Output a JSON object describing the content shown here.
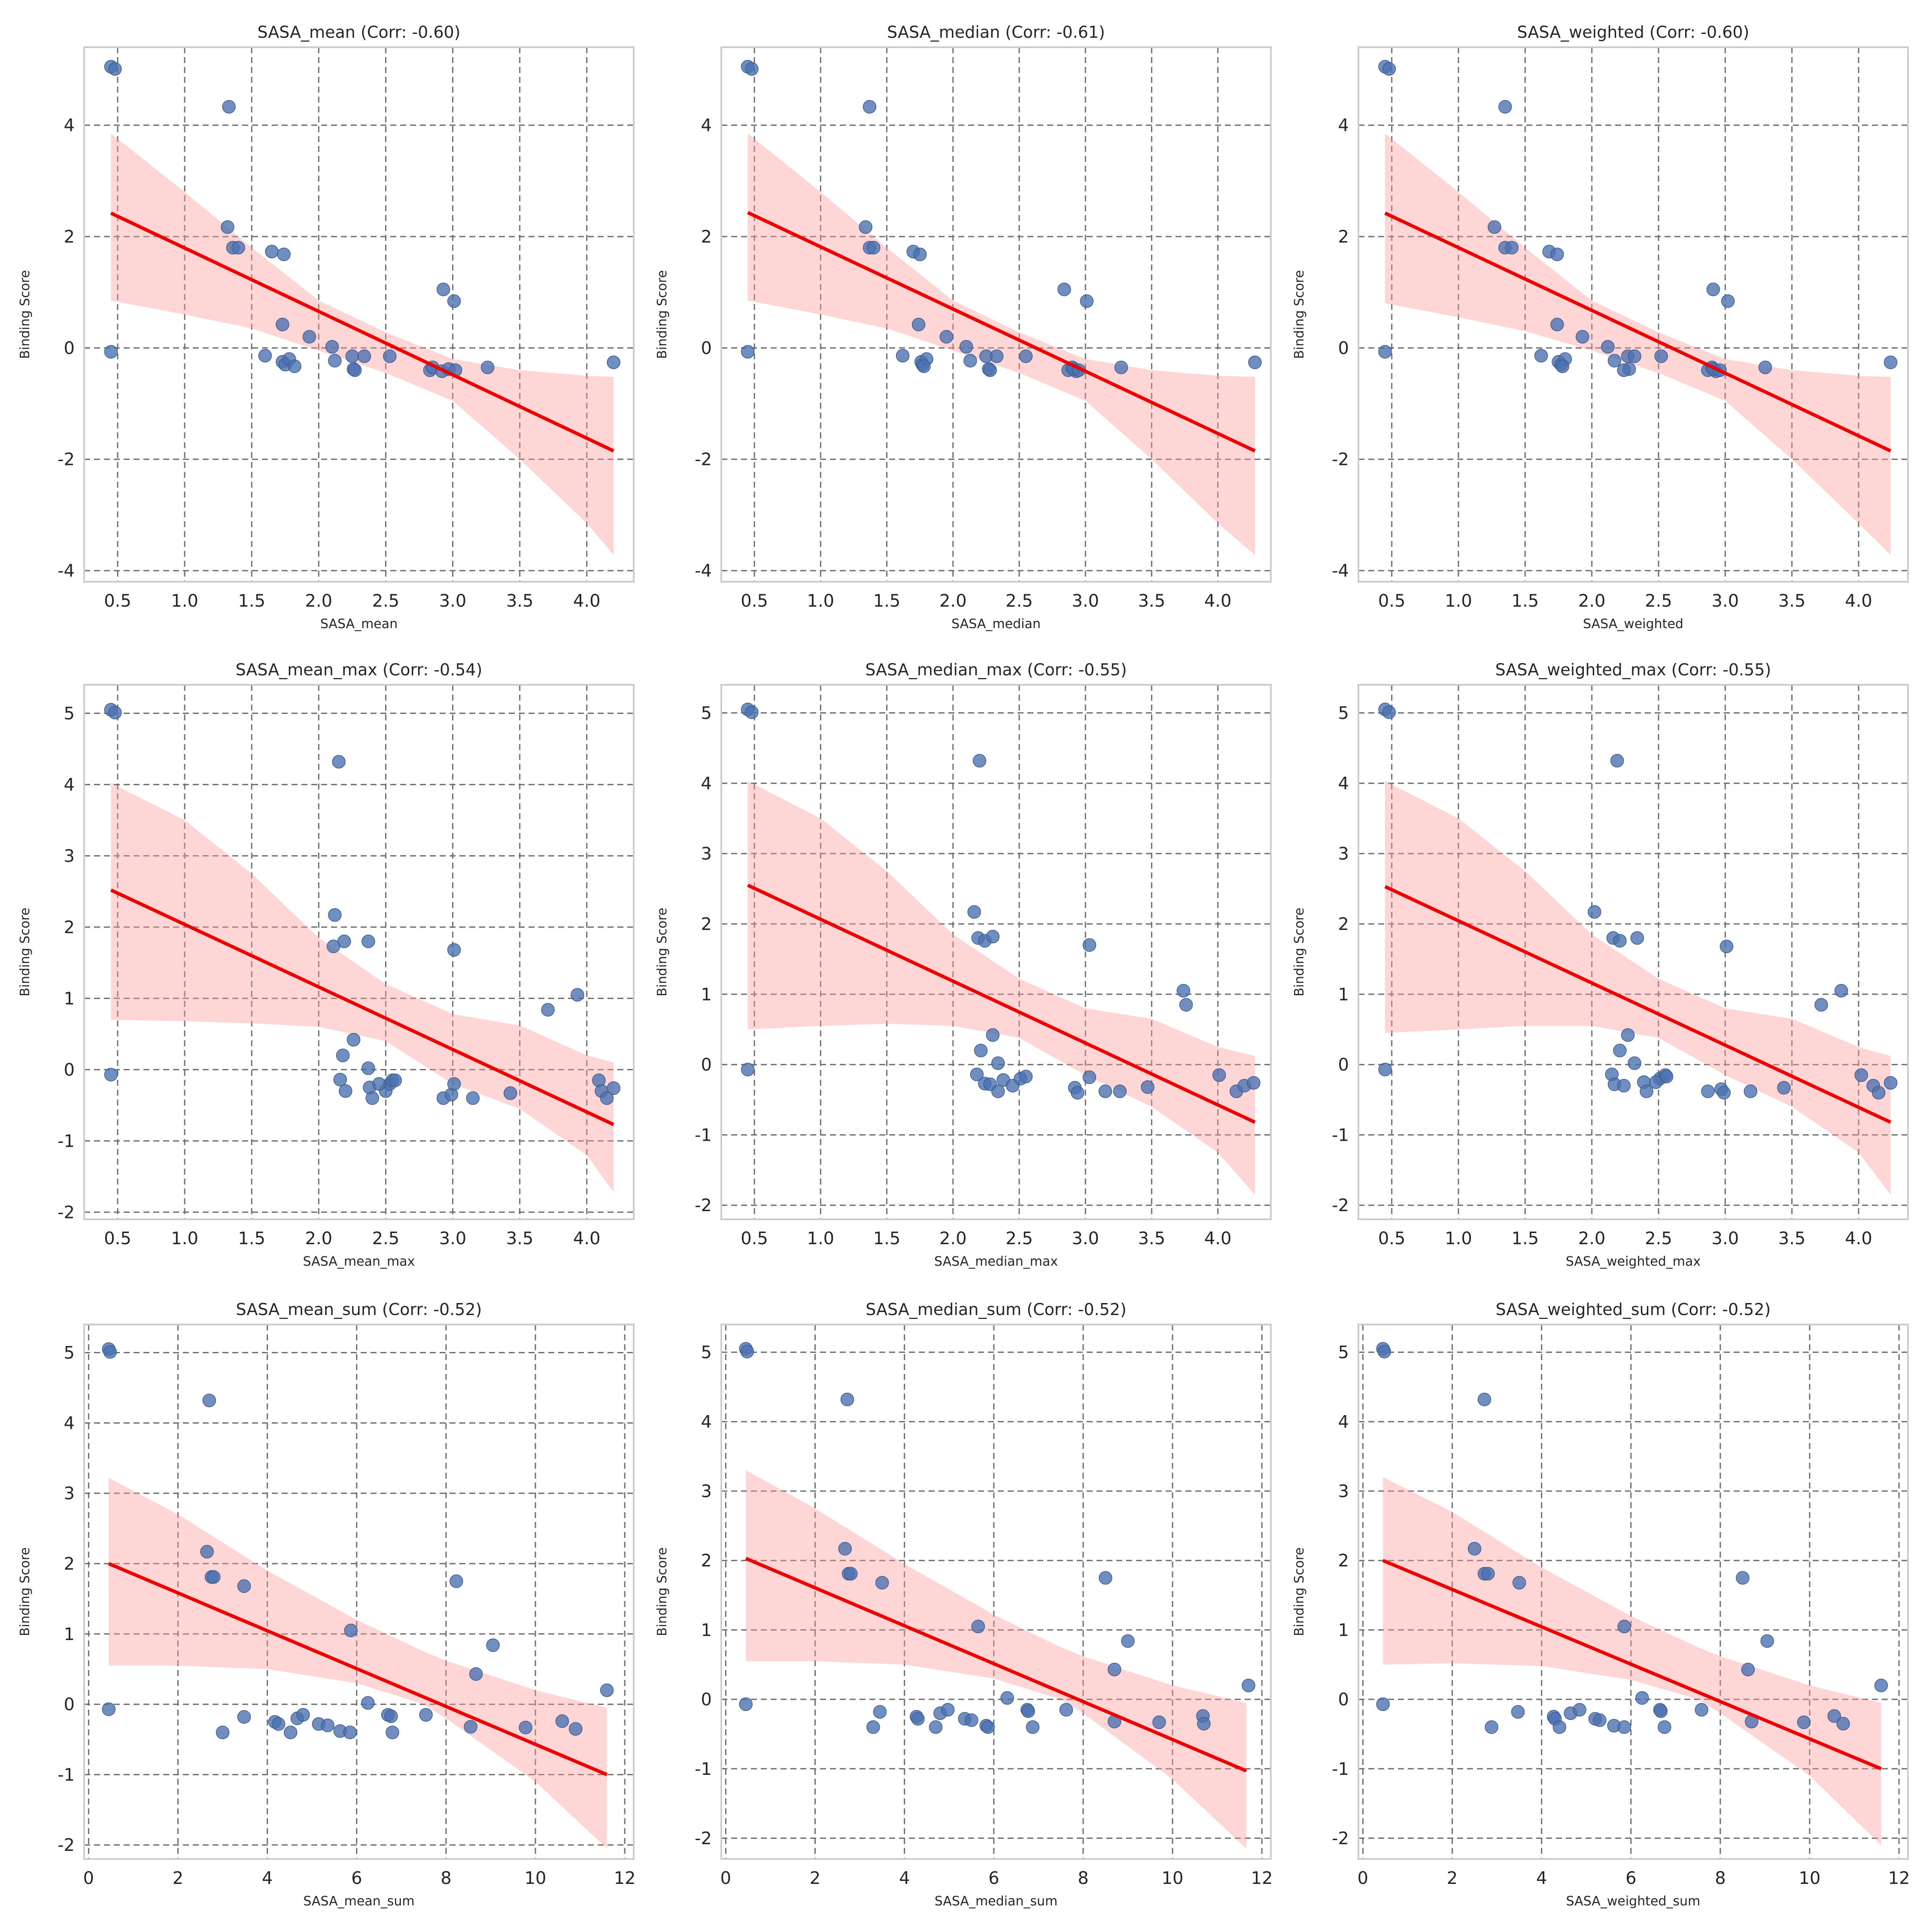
{
  "chart_data": [
    {
      "type": "scatter",
      "title": "SASA_mean (Corr: -0.60)",
      "xlabel": "SASA_mean",
      "ylabel": "Binding Score",
      "xlim": [
        0.25,
        4.35
      ],
      "ylim": [
        -4.2,
        5.4
      ],
      "xticks": [
        0.5,
        1.0,
        1.5,
        2.0,
        2.5,
        3.0,
        3.5,
        4.0
      ],
      "yticks": [
        -4,
        -2,
        0,
        2,
        4
      ],
      "x": [
        0.45,
        0.48,
        0.45,
        1.33,
        1.32,
        1.36,
        1.4,
        1.65,
        1.74,
        1.73,
        1.6,
        1.73,
        1.75,
        1.78,
        1.82,
        1.93,
        2.1,
        2.12,
        2.25,
        2.26,
        2.27,
        2.34,
        2.53,
        2.83,
        2.85,
        2.92,
        2.97,
        3.02,
        2.93,
        3.01,
        3.26,
        4.2
      ],
      "y": [
        5.05,
        5.01,
        -0.07,
        4.33,
        2.17,
        1.8,
        1.8,
        1.73,
        1.68,
        0.42,
        -0.14,
        -0.25,
        -0.3,
        -0.2,
        -0.33,
        0.2,
        0.02,
        -0.23,
        -0.15,
        -0.38,
        -0.4,
        -0.15,
        -0.15,
        -0.4,
        -0.35,
        -0.42,
        -0.38,
        -0.4,
        1.05,
        0.84,
        -0.35,
        -0.26
      ],
      "fit": {
        "x": [
          0.45,
          4.2
        ],
        "y": [
          2.42,
          -1.85
        ]
      },
      "band": {
        "x": [
          0.45,
          1.0,
          1.5,
          2.0,
          2.5,
          3.0,
          3.5,
          4.0,
          4.2
        ],
        "lower": [
          0.85,
          0.6,
          0.35,
          -0.05,
          -0.45,
          -0.95,
          -2.0,
          -3.15,
          -3.72
        ],
        "upper": [
          3.85,
          2.8,
          1.8,
          0.85,
          0.28,
          -0.2,
          -0.4,
          -0.5,
          -0.52
        ]
      }
    },
    {
      "type": "scatter",
      "title": "SASA_median (Corr: -0.61)",
      "xlabel": "SASA_median",
      "ylabel": "Binding Score",
      "xlim": [
        0.25,
        4.4
      ],
      "ylim": [
        -4.2,
        5.4
      ],
      "xticks": [
        0.5,
        1.0,
        1.5,
        2.0,
        2.5,
        3.0,
        3.5,
        4.0
      ],
      "yticks": [
        -4,
        -2,
        0,
        2,
        4
      ],
      "x": [
        0.45,
        0.48,
        0.45,
        1.37,
        1.34,
        1.37,
        1.4,
        1.7,
        1.75,
        1.74,
        1.62,
        1.76,
        1.77,
        1.8,
        1.78,
        1.95,
        2.1,
        2.13,
        2.25,
        2.27,
        2.28,
        2.33,
        2.55,
        2.87,
        2.9,
        2.93,
        2.91,
        2.95,
        2.84,
        3.01,
        3.27,
        4.28
      ],
      "y": [
        5.05,
        5.01,
        -0.07,
        4.33,
        2.17,
        1.8,
        1.8,
        1.73,
        1.68,
        0.42,
        -0.14,
        -0.25,
        -0.3,
        -0.2,
        -0.33,
        0.2,
        0.02,
        -0.23,
        -0.15,
        -0.38,
        -0.4,
        -0.15,
        -0.15,
        -0.4,
        -0.35,
        -0.42,
        -0.38,
        -0.4,
        1.05,
        0.84,
        -0.35,
        -0.26
      ],
      "fit": {
        "x": [
          0.45,
          4.28
        ],
        "y": [
          2.43,
          -1.85
        ]
      },
      "band": {
        "x": [
          0.45,
          1.0,
          1.5,
          2.0,
          2.5,
          3.0,
          3.5,
          4.0,
          4.28
        ],
        "lower": [
          0.85,
          0.6,
          0.35,
          -0.05,
          -0.45,
          -0.95,
          -2.0,
          -3.15,
          -3.72
        ],
        "upper": [
          3.85,
          2.8,
          1.8,
          0.85,
          0.28,
          -0.2,
          -0.4,
          -0.5,
          -0.52
        ]
      }
    },
    {
      "type": "scatter",
      "title": "SASA_weighted (Corr: -0.60)",
      "xlabel": "SASA_weighted",
      "ylabel": "Binding Score",
      "xlim": [
        0.25,
        4.37
      ],
      "ylim": [
        -4.2,
        5.4
      ],
      "xticks": [
        0.5,
        1.0,
        1.5,
        2.0,
        2.5,
        3.0,
        3.5,
        4.0
      ],
      "yticks": [
        -4,
        -2,
        0,
        2,
        4
      ],
      "x": [
        0.45,
        0.48,
        0.45,
        1.35,
        1.27,
        1.35,
        1.4,
        1.68,
        1.74,
        1.74,
        1.62,
        1.75,
        1.77,
        1.8,
        1.78,
        1.93,
        2.12,
        2.17,
        2.27,
        2.28,
        2.24,
        2.32,
        2.52,
        2.87,
        2.9,
        2.93,
        2.91,
        2.96,
        2.91,
        3.02,
        3.3,
        4.24
      ],
      "y": [
        5.05,
        5.01,
        -0.07,
        4.33,
        2.17,
        1.8,
        1.8,
        1.73,
        1.68,
        0.42,
        -0.14,
        -0.25,
        -0.3,
        -0.2,
        -0.33,
        0.2,
        0.02,
        -0.23,
        -0.15,
        -0.38,
        -0.4,
        -0.15,
        -0.15,
        -0.4,
        -0.35,
        -0.42,
        -0.38,
        -0.4,
        1.05,
        0.84,
        -0.35,
        -0.26
      ],
      "fit": {
        "x": [
          0.45,
          4.24
        ],
        "y": [
          2.42,
          -1.85
        ]
      },
      "band": {
        "x": [
          0.45,
          1.0,
          1.5,
          2.0,
          2.5,
          3.0,
          3.5,
          4.0,
          4.24
        ],
        "lower": [
          0.8,
          0.55,
          0.3,
          -0.05,
          -0.45,
          -0.95,
          -2.0,
          -3.15,
          -3.72
        ],
        "upper": [
          3.85,
          2.8,
          1.8,
          0.85,
          0.28,
          -0.2,
          -0.4,
          -0.5,
          -0.52
        ]
      }
    },
    {
      "type": "scatter",
      "title": "SASA_mean_max (Corr: -0.54)",
      "xlabel": "SASA_mean_max",
      "ylabel": "Binding Score",
      "xlim": [
        0.25,
        4.35
      ],
      "ylim": [
        -2.1,
        5.4
      ],
      "xticks": [
        0.5,
        1.0,
        1.5,
        2.0,
        2.5,
        3.0,
        3.5,
        4.0
      ],
      "yticks": [
        -2,
        -1,
        0,
        1,
        2,
        3,
        4,
        5
      ],
      "x": [
        0.45,
        0.48,
        0.45,
        2.15,
        2.12,
        2.19,
        2.37,
        2.11,
        3.01,
        2.26,
        2.18,
        2.37,
        2.16,
        2.2,
        2.38,
        2.4,
        2.5,
        2.53,
        2.55,
        2.93,
        2.99,
        3.01,
        3.15,
        3.43,
        3.71,
        3.93,
        4.09,
        4.11,
        4.15,
        4.2,
        2.45,
        2.57
      ],
      "y": [
        5.05,
        5.01,
        -0.07,
        4.32,
        2.17,
        1.8,
        1.8,
        1.73,
        1.68,
        0.42,
        0.2,
        0.02,
        -0.14,
        -0.3,
        -0.25,
        -0.4,
        -0.3,
        -0.2,
        -0.15,
        -0.4,
        -0.35,
        -0.2,
        -0.4,
        -0.33,
        0.84,
        1.05,
        -0.15,
        -0.3,
        -0.4,
        -0.26,
        -0.2,
        -0.15
      ],
      "fit": {
        "x": [
          0.45,
          4.2
        ],
        "y": [
          2.52,
          -0.77
        ]
      },
      "band": {
        "x": [
          0.45,
          1.0,
          1.5,
          2.0,
          2.5,
          3.0,
          3.5,
          4.0,
          4.2
        ],
        "lower": [
          0.7,
          0.68,
          0.65,
          0.6,
          0.4,
          -0.2,
          -0.55,
          -1.2,
          -1.72
        ],
        "upper": [
          4.02,
          3.5,
          2.75,
          1.85,
          1.2,
          0.78,
          0.62,
          0.2,
          0.1
        ]
      }
    },
    {
      "type": "scatter",
      "title": "SASA_median_max (Corr: -0.55)",
      "xlabel": "SASA_median_max",
      "ylabel": "Binding Score",
      "xlim": [
        0.25,
        4.4
      ],
      "ylim": [
        -2.2,
        5.4
      ],
      "xticks": [
        0.5,
        1.0,
        1.5,
        2.0,
        2.5,
        3.0,
        3.5,
        4.0
      ],
      "yticks": [
        -2,
        -1,
        0,
        1,
        2,
        3,
        4,
        5
      ],
      "x": [
        0.45,
        0.48,
        0.45,
        2.2,
        2.16,
        2.19,
        2.24,
        2.3,
        3.03,
        2.3,
        2.21,
        2.34,
        2.18,
        2.24,
        2.28,
        2.34,
        2.38,
        2.45,
        2.51,
        2.92,
        2.94,
        3.03,
        3.15,
        3.26,
        3.47,
        3.74,
        3.76,
        4.01,
        4.14,
        4.2,
        4.27,
        2.55
      ],
      "y": [
        5.05,
        5.01,
        -0.07,
        4.32,
        2.17,
        1.8,
        1.76,
        1.82,
        1.7,
        0.42,
        0.2,
        0.02,
        -0.14,
        -0.27,
        -0.28,
        -0.38,
        -0.22,
        -0.3,
        -0.2,
        -0.33,
        -0.4,
        -0.18,
        -0.38,
        -0.38,
        -0.32,
        1.05,
        0.85,
        -0.15,
        -0.38,
        -0.3,
        -0.26,
        -0.17
      ],
      "fit": {
        "x": [
          0.45,
          4.28
        ],
        "y": [
          2.55,
          -0.82
        ]
      },
      "band": {
        "x": [
          0.45,
          1.0,
          1.5,
          2.0,
          2.5,
          3.0,
          3.5,
          4.0,
          4.28
        ],
        "lower": [
          0.5,
          0.55,
          0.58,
          0.55,
          0.38,
          -0.15,
          -0.6,
          -1.25,
          -1.85
        ],
        "upper": [
          4.03,
          3.5,
          2.75,
          1.85,
          1.22,
          0.8,
          0.65,
          0.25,
          0.12
        ]
      }
    },
    {
      "type": "scatter",
      "title": "SASA_weighted_max (Corr: -0.55)",
      "xlabel": "SASA_weighted_max",
      "ylabel": "Binding Score",
      "xlim": [
        0.25,
        4.37
      ],
      "ylim": [
        -2.2,
        5.4
      ],
      "xticks": [
        0.5,
        1.0,
        1.5,
        2.0,
        2.5,
        3.0,
        3.5,
        4.0
      ],
      "yticks": [
        -2,
        -1,
        0,
        1,
        2,
        3,
        4,
        5
      ],
      "x": [
        0.45,
        0.48,
        0.45,
        2.19,
        2.02,
        2.16,
        2.34,
        2.21,
        3.01,
        2.27,
        2.21,
        2.32,
        2.15,
        2.17,
        2.24,
        2.39,
        2.51,
        2.41,
        2.55,
        2.87,
        2.97,
        2.99,
        3.19,
        3.44,
        3.72,
        3.87,
        4.02,
        4.11,
        4.15,
        4.24,
        2.48,
        2.56
      ],
      "y": [
        5.05,
        5.01,
        -0.07,
        4.32,
        2.17,
        1.8,
        1.8,
        1.76,
        1.68,
        0.42,
        0.2,
        0.02,
        -0.14,
        -0.28,
        -0.3,
        -0.25,
        -0.2,
        -0.38,
        -0.15,
        -0.38,
        -0.35,
        -0.4,
        -0.38,
        -0.33,
        0.85,
        1.05,
        -0.15,
        -0.3,
        -0.4,
        -0.26,
        -0.25,
        -0.17
      ],
      "fit": {
        "x": [
          0.45,
          4.24
        ],
        "y": [
          2.53,
          -0.82
        ]
      },
      "band": {
        "x": [
          0.45,
          1.0,
          1.5,
          2.0,
          2.5,
          3.0,
          3.5,
          4.0,
          4.24
        ],
        "lower": [
          0.45,
          0.5,
          0.55,
          0.55,
          0.38,
          -0.15,
          -0.6,
          -1.25,
          -1.85
        ],
        "upper": [
          4.03,
          3.5,
          2.75,
          1.85,
          1.22,
          0.8,
          0.65,
          0.25,
          0.12
        ]
      }
    },
    {
      "type": "scatter",
      "title": "SASA_mean_sum (Corr: -0.52)",
      "xlabel": "SASA_mean_sum",
      "ylabel": "Binding Score",
      "xlim": [
        -0.1,
        12.2
      ],
      "ylim": [
        -2.2,
        5.4
      ],
      "xticks": [
        0,
        2,
        4,
        6,
        8,
        10,
        12
      ],
      "yticks": [
        -2,
        -1,
        0,
        1,
        2,
        3,
        4,
        5
      ],
      "x": [
        0.45,
        0.48,
        0.45,
        2.7,
        2.65,
        2.75,
        2.8,
        3.48,
        3.0,
        3.48,
        4.17,
        4.25,
        4.52,
        4.67,
        4.8,
        5.15,
        5.35,
        5.63,
        5.85,
        5.87,
        6.25,
        6.7,
        6.77,
        6.8,
        7.55,
        8.23,
        8.55,
        8.67,
        9.05,
        9.78,
        10.6,
        10.9,
        11.6
      ],
      "y": [
        5.05,
        5.01,
        -0.07,
        4.32,
        2.17,
        1.81,
        1.81,
        1.68,
        -0.4,
        -0.18,
        -0.25,
        -0.28,
        -0.4,
        -0.2,
        -0.15,
        -0.28,
        -0.3,
        -0.38,
        -0.4,
        1.05,
        0.02,
        -0.15,
        -0.17,
        -0.4,
        -0.15,
        1.75,
        -0.32,
        0.43,
        0.84,
        -0.33,
        -0.24,
        -0.35,
        0.2
      ],
      "fit": {
        "x": [
          0.45,
          11.6
        ],
        "y": [
          2.0,
          -1.0
        ]
      },
      "band": {
        "x": [
          0.45,
          2,
          4,
          6,
          7.5,
          8,
          10,
          11.6
        ],
        "lower": [
          0.55,
          0.55,
          0.5,
          0.3,
          0.0,
          -0.2,
          -1.1,
          -2.05
        ],
        "upper": [
          3.22,
          2.7,
          1.9,
          1.2,
          0.75,
          0.62,
          0.2,
          -0.05
        ]
      }
    },
    {
      "type": "scatter",
      "title": "SASA_median_sum (Corr: -0.52)",
      "xlabel": "SASA_median_sum",
      "ylabel": "Binding Score",
      "xlim": [
        -0.1,
        12.2
      ],
      "ylim": [
        -2.3,
        5.4
      ],
      "xticks": [
        0,
        2,
        4,
        6,
        8,
        10,
        12
      ],
      "yticks": [
        -2,
        -1,
        0,
        1,
        2,
        3,
        4,
        5
      ],
      "x": [
        0.45,
        0.48,
        0.45,
        2.72,
        2.67,
        2.75,
        2.8,
        3.5,
        3.3,
        3.45,
        4.27,
        4.3,
        4.7,
        4.8,
        4.97,
        5.35,
        5.5,
        5.83,
        5.87,
        5.65,
        6.3,
        6.75,
        6.77,
        6.87,
        7.62,
        8.5,
        8.7,
        8.7,
        9.0,
        9.7,
        10.68,
        10.7,
        11.7
      ],
      "y": [
        5.05,
        5.01,
        -0.07,
        4.32,
        2.17,
        1.81,
        1.81,
        1.68,
        -0.4,
        -0.18,
        -0.25,
        -0.28,
        -0.4,
        -0.2,
        -0.15,
        -0.28,
        -0.3,
        -0.38,
        -0.4,
        1.05,
        0.02,
        -0.15,
        -0.17,
        -0.4,
        -0.15,
        1.75,
        -0.32,
        0.43,
        0.84,
        -0.33,
        -0.24,
        -0.35,
        0.2
      ],
      "fit": {
        "x": [
          0.45,
          11.65
        ],
        "y": [
          2.03,
          -1.03
        ]
      },
      "band": {
        "x": [
          0.45,
          2,
          4,
          6,
          7.5,
          8,
          10,
          11.65
        ],
        "lower": [
          0.55,
          0.55,
          0.5,
          0.3,
          0.0,
          -0.2,
          -1.15,
          -2.15
        ],
        "upper": [
          3.3,
          2.75,
          1.95,
          1.22,
          0.75,
          0.62,
          0.2,
          -0.05
        ]
      }
    },
    {
      "type": "scatter",
      "title": "SASA_weighted_sum (Corr: -0.52)",
      "xlabel": "SASA_weighted_sum",
      "ylabel": "Binding Score",
      "xlim": [
        -0.1,
        12.2
      ],
      "ylim": [
        -2.3,
        5.4
      ],
      "xticks": [
        0,
        2,
        4,
        6,
        8,
        10,
        12
      ],
      "yticks": [
        -2,
        -1,
        0,
        1,
        2,
        3,
        4,
        5
      ],
      "x": [
        0.45,
        0.48,
        0.45,
        2.72,
        2.5,
        2.72,
        2.8,
        3.5,
        2.88,
        3.47,
        4.27,
        4.3,
        4.4,
        4.65,
        4.85,
        5.2,
        5.3,
        5.62,
        5.85,
        5.85,
        6.25,
        6.65,
        6.67,
        6.75,
        7.58,
        8.5,
        8.7,
        8.62,
        9.05,
        9.87,
        10.55,
        10.75,
        11.6
      ],
      "y": [
        5.05,
        5.01,
        -0.07,
        4.32,
        2.17,
        1.81,
        1.81,
        1.68,
        -0.4,
        -0.18,
        -0.25,
        -0.28,
        -0.4,
        -0.2,
        -0.15,
        -0.28,
        -0.3,
        -0.38,
        -0.4,
        1.05,
        0.02,
        -0.15,
        -0.17,
        -0.4,
        -0.15,
        1.75,
        -0.32,
        0.43,
        0.84,
        -0.33,
        -0.24,
        -0.35,
        0.2
      ],
      "fit": {
        "x": [
          0.45,
          11.6
        ],
        "y": [
          2.0,
          -1.0
        ]
      },
      "band": {
        "x": [
          0.45,
          2,
          4,
          6,
          7.5,
          8,
          10,
          11.6
        ],
        "lower": [
          0.5,
          0.52,
          0.48,
          0.28,
          0.0,
          -0.2,
          -1.1,
          -2.1
        ],
        "upper": [
          3.2,
          2.7,
          1.9,
          1.2,
          0.75,
          0.62,
          0.2,
          -0.05
        ]
      }
    }
  ]
}
